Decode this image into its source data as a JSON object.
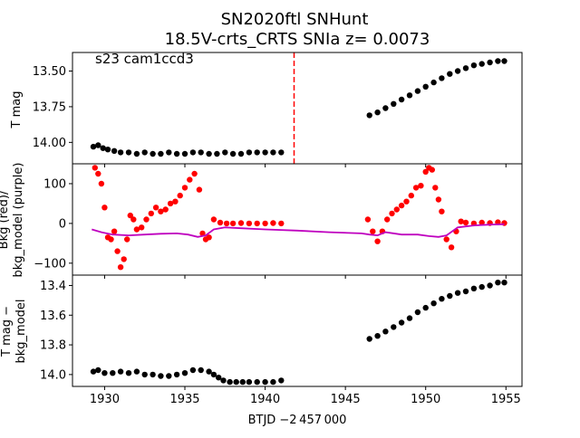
{
  "chart_data": {
    "type": "scatter",
    "title_line1": "SN2020ftl  SNHunt",
    "title_line2": "18.5V-crts_CRTS SNIa z= 0.0073",
    "xlabel": "BTJD −2 457 000",
    "xlim": [
      1928,
      1956
    ],
    "xticks": [
      1930,
      1935,
      1940,
      1945,
      1950,
      1955
    ],
    "colors": {
      "points_main": "#000000",
      "points_bkg": "#ff0000",
      "bkg_model": "#bf00bf",
      "marker_line": "#ff0000"
    },
    "panels": [
      {
        "id": "top",
        "ylabel": "T mag",
        "annotation": "s23 cam1ccd3",
        "ylim": [
          14.15,
          13.37
        ],
        "yticks": [
          "13.50",
          "13.75",
          "14.00"
        ],
        "yticks_values": [
          13.5,
          13.75,
          14.0
        ],
        "vline_x": 1941.8,
        "series": [
          {
            "name": "",
            "x": [
              1929.3,
              1929.6,
              1929.9,
              1930.2,
              1930.6,
              1931.0,
              1931.5,
              1932.0,
              1932.5,
              1933.0,
              1933.5,
              1934.0,
              1934.5,
              1935.0,
              1935.5,
              1936.0,
              1936.5,
              1937.0,
              1937.5,
              1938.0,
              1938.5,
              1939.0,
              1939.5,
              1940.0,
              1940.5,
              1941.0
            ],
            "y": [
              14.03,
              14.02,
              14.04,
              14.05,
              14.06,
              14.07,
              14.07,
              14.08,
              14.07,
              14.08,
              14.08,
              14.07,
              14.08,
              14.08,
              14.07,
              14.07,
              14.08,
              14.08,
              14.07,
              14.08,
              14.08,
              14.07,
              14.07,
              14.07,
              14.07,
              14.07
            ]
          },
          {
            "name": "",
            "x": [
              1946.5,
              1947.0,
              1947.5,
              1948.0,
              1948.5,
              1949.0,
              1949.5,
              1950.0,
              1950.5,
              1951.0,
              1951.5,
              1952.0,
              1952.5,
              1953.0,
              1953.5,
              1954.0,
              1954.5,
              1954.9
            ],
            "y": [
              13.81,
              13.79,
              13.76,
              13.73,
              13.7,
              13.67,
              13.64,
              13.61,
              13.58,
              13.55,
              13.52,
              13.5,
              13.48,
              13.46,
              13.45,
              13.44,
              13.43,
              13.43
            ]
          }
        ]
      },
      {
        "id": "middle",
        "ylabel_line1": "Bkg (red)/",
        "ylabel_line2": "bkg_model (purple)",
        "ylim": [
          -130,
          150
        ],
        "yticks": [
          "−100",
          "0",
          "100"
        ],
        "yticks_values": [
          -100,
          0,
          100
        ],
        "series": [
          {
            "name": "",
            "x": [
              1929.4,
              1929.6,
              1929.8,
              1930.0,
              1930.2,
              1930.4,
              1930.6,
              1930.8,
              1931.0,
              1931.2,
              1931.4,
              1931.6,
              1931.8,
              1932.0,
              1932.3,
              1932.6,
              1932.9,
              1933.2,
              1933.5,
              1933.8,
              1934.1,
              1934.4,
              1934.7,
              1935.0,
              1935.3,
              1935.6,
              1935.9,
              1936.1,
              1936.3,
              1936.5,
              1936.8,
              1937.2,
              1937.6,
              1938.0,
              1938.5,
              1939.0,
              1939.5,
              1940.0,
              1940.5,
              1941.0
            ],
            "y": [
              140,
              125,
              100,
              40,
              -35,
              -40,
              -20,
              -70,
              -110,
              -90,
              -40,
              20,
              10,
              -15,
              -10,
              10,
              25,
              40,
              30,
              35,
              50,
              55,
              70,
              90,
              110,
              125,
              85,
              -25,
              -40,
              -35,
              10,
              2,
              0,
              0,
              1,
              0,
              0,
              0,
              1,
              0
            ]
          },
          {
            "name": "",
            "x": [
              1946.4,
              1946.7,
              1947.0,
              1947.3,
              1947.6,
              1947.9,
              1948.2,
              1948.5,
              1948.8,
              1949.1,
              1949.4,
              1949.7,
              1950.0,
              1950.2,
              1950.4,
              1950.6,
              1950.8,
              1951.0,
              1951.3,
              1951.6,
              1951.9,
              1952.2,
              1952.5,
              1953.0,
              1953.5,
              1954.0,
              1954.5,
              1954.9
            ],
            "y": [
              10,
              -20,
              -45,
              -20,
              10,
              25,
              35,
              45,
              55,
              70,
              90,
              95,
              130,
              140,
              135,
              90,
              60,
              30,
              -40,
              -60,
              -20,
              5,
              2,
              0,
              2,
              1,
              3,
              1
            ]
          }
        ],
        "model_line": {
          "x": [
            1929.2,
            1929.8,
            1930.5,
            1931.5,
            1932.5,
            1933.5,
            1934.5,
            1935.2,
            1935.8,
            1936.3,
            1936.8,
            1937.5,
            1938.5,
            1940,
            1942,
            1944,
            1946,
            1946.5,
            1947.0,
            1947.5,
            1948.5,
            1949.5,
            1950.2,
            1950.8,
            1951.3,
            1952.0,
            1953.0,
            1954.0,
            1954.9
          ],
          "y": [
            -15,
            -22,
            -28,
            -30,
            -28,
            -26,
            -25,
            -28,
            -34,
            -30,
            -15,
            -10,
            -12,
            -15,
            -18,
            -22,
            -25,
            -28,
            -30,
            -22,
            -28,
            -28,
            -32,
            -34,
            -30,
            -10,
            -5,
            -3,
            -2
          ]
        }
      },
      {
        "id": "bottom",
        "ylabel_line1": "T mag −",
        "ylabel_line2": "bkg_model",
        "ylim": [
          14.08,
          13.33
        ],
        "yticks": [
          "13.4",
          "13.6",
          "13.8",
          "14.0"
        ],
        "yticks_values": [
          13.4,
          13.6,
          13.8,
          14.0
        ],
        "series": [
          {
            "name": "",
            "x": [
              1929.3,
              1929.6,
              1930.0,
              1930.5,
              1931.0,
              1931.5,
              1932.0,
              1932.5,
              1933.0,
              1933.5,
              1934.0,
              1934.5,
              1935.0,
              1935.5,
              1936.0,
              1936.5,
              1936.8,
              1937.1,
              1937.4,
              1937.8,
              1938.2,
              1938.6,
              1939.0,
              1939.5,
              1940.0,
              1940.5,
              1941.0
            ],
            "y": [
              13.98,
              13.97,
              13.99,
              13.99,
              13.98,
              13.99,
              13.98,
              14.0,
              14.0,
              14.01,
              14.01,
              14.0,
              13.99,
              13.97,
              13.97,
              13.98,
              14.0,
              14.02,
              14.04,
              14.05,
              14.05,
              14.05,
              14.05,
              14.05,
              14.05,
              14.05,
              14.04
            ]
          },
          {
            "name": "",
            "x": [
              1946.5,
              1947.0,
              1947.5,
              1948.0,
              1948.5,
              1949.0,
              1949.5,
              1950.0,
              1950.5,
              1951.0,
              1951.5,
              1952.0,
              1952.5,
              1953.0,
              1953.5,
              1954.0,
              1954.5,
              1954.9
            ],
            "y": [
              13.76,
              13.74,
              13.71,
              13.68,
              13.65,
              13.62,
              13.58,
              13.55,
              13.52,
              13.49,
              13.47,
              13.45,
              13.44,
              13.42,
              13.41,
              13.4,
              13.38,
              13.38
            ]
          }
        ]
      }
    ]
  }
}
